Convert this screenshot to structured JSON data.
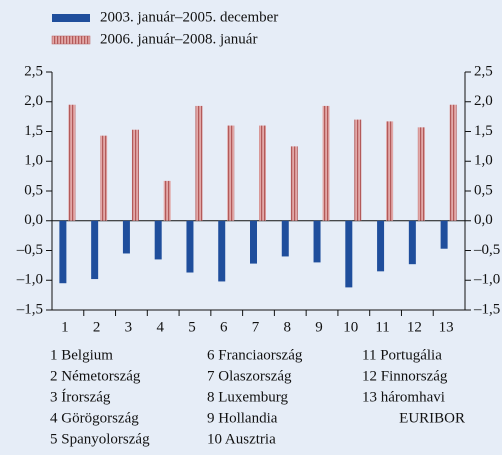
{
  "chart_data": {
    "type": "bar",
    "categories": [
      "1",
      "2",
      "3",
      "4",
      "5",
      "6",
      "7",
      "8",
      "9",
      "10",
      "11",
      "12",
      "13"
    ],
    "series": [
      {
        "name": "2003. január–2005. december",
        "color": "#1f4e9c",
        "values": [
          -1.05,
          -0.98,
          -0.55,
          -0.65,
          -0.87,
          -1.02,
          -0.72,
          -0.6,
          -0.7,
          -1.12,
          -0.85,
          -0.73,
          -0.47
        ]
      },
      {
        "name": "2006. január–2008. január",
        "color": "#e2a8a8",
        "pattern": "striped",
        "values": [
          1.95,
          1.43,
          1.53,
          0.67,
          1.93,
          1.6,
          1.6,
          1.25,
          1.93,
          1.7,
          1.67,
          1.57,
          1.95
        ]
      }
    ],
    "ylim": [
      -1.5,
      2.5
    ],
    "yticks": [
      {
        "value": -1.5,
        "label": "–1,5"
      },
      {
        "value": -1,
        "label": "–1,0"
      },
      {
        "value": -0.5,
        "label": "–0,5"
      },
      {
        "value": 0,
        "label": "0,0"
      },
      {
        "value": 0.5,
        "label": "0,5"
      },
      {
        "value": 1,
        "label": "1,0"
      },
      {
        "value": 1.5,
        "label": "1,5"
      },
      {
        "value": 2,
        "label": "2,0"
      },
      {
        "value": 2.5,
        "label": "2,5"
      }
    ],
    "grid": false,
    "legend": "top-left",
    "notes": [
      "1 Belgium",
      "2 Németország",
      "3 Írország",
      "4 Görögország",
      "5 Spanyolország",
      "6 Franciaország",
      "7 Olaszország",
      "8 Luxemburg",
      "9 Hollandia",
      "10 Ausztria",
      "11 Portugália",
      "12 Finnország",
      "13 háromhavi",
      "EURIBOR"
    ]
  }
}
